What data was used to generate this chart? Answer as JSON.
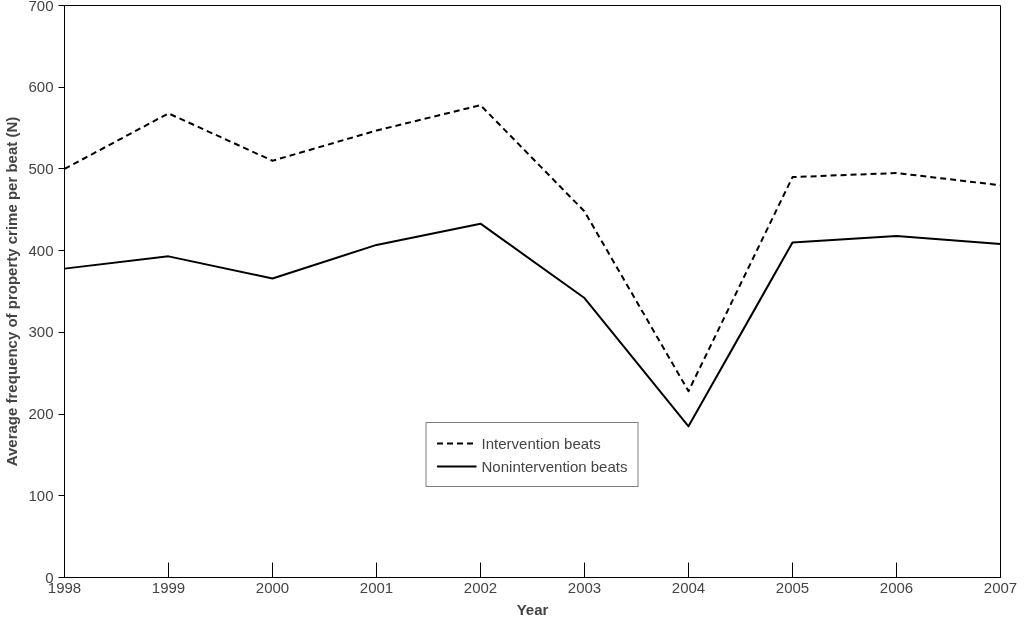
{
  "chart_data": {
    "type": "line",
    "xlabel": "Year",
    "ylabel": "Average frequency of property crime per beat (N)",
    "x": [
      1998,
      1999,
      2000,
      2001,
      2002,
      2003,
      2004,
      2005,
      2006,
      2007
    ],
    "series": [
      {
        "name": "Intervention beats",
        "color": "#000000",
        "line_style": "dashed",
        "values": [
          500,
          568,
          510,
          547,
          578,
          448,
          228,
          490,
          495,
          480
        ]
      },
      {
        "name": "Nonintervention beats",
        "color": "#000000",
        "line_style": "solid",
        "values": [
          378,
          393,
          366,
          407,
          433,
          342,
          185,
          410,
          418,
          408
        ]
      }
    ],
    "xlim": [
      1998,
      2007
    ],
    "ylim": [
      0,
      700
    ],
    "xticks": [
      1998,
      1999,
      2000,
      2001,
      2002,
      2003,
      2004,
      2005,
      2006,
      2007
    ],
    "yticks": [
      0,
      100,
      200,
      300,
      400,
      500,
      600,
      700
    ],
    "grid": false,
    "legend": "bottom",
    "marker": "none"
  }
}
